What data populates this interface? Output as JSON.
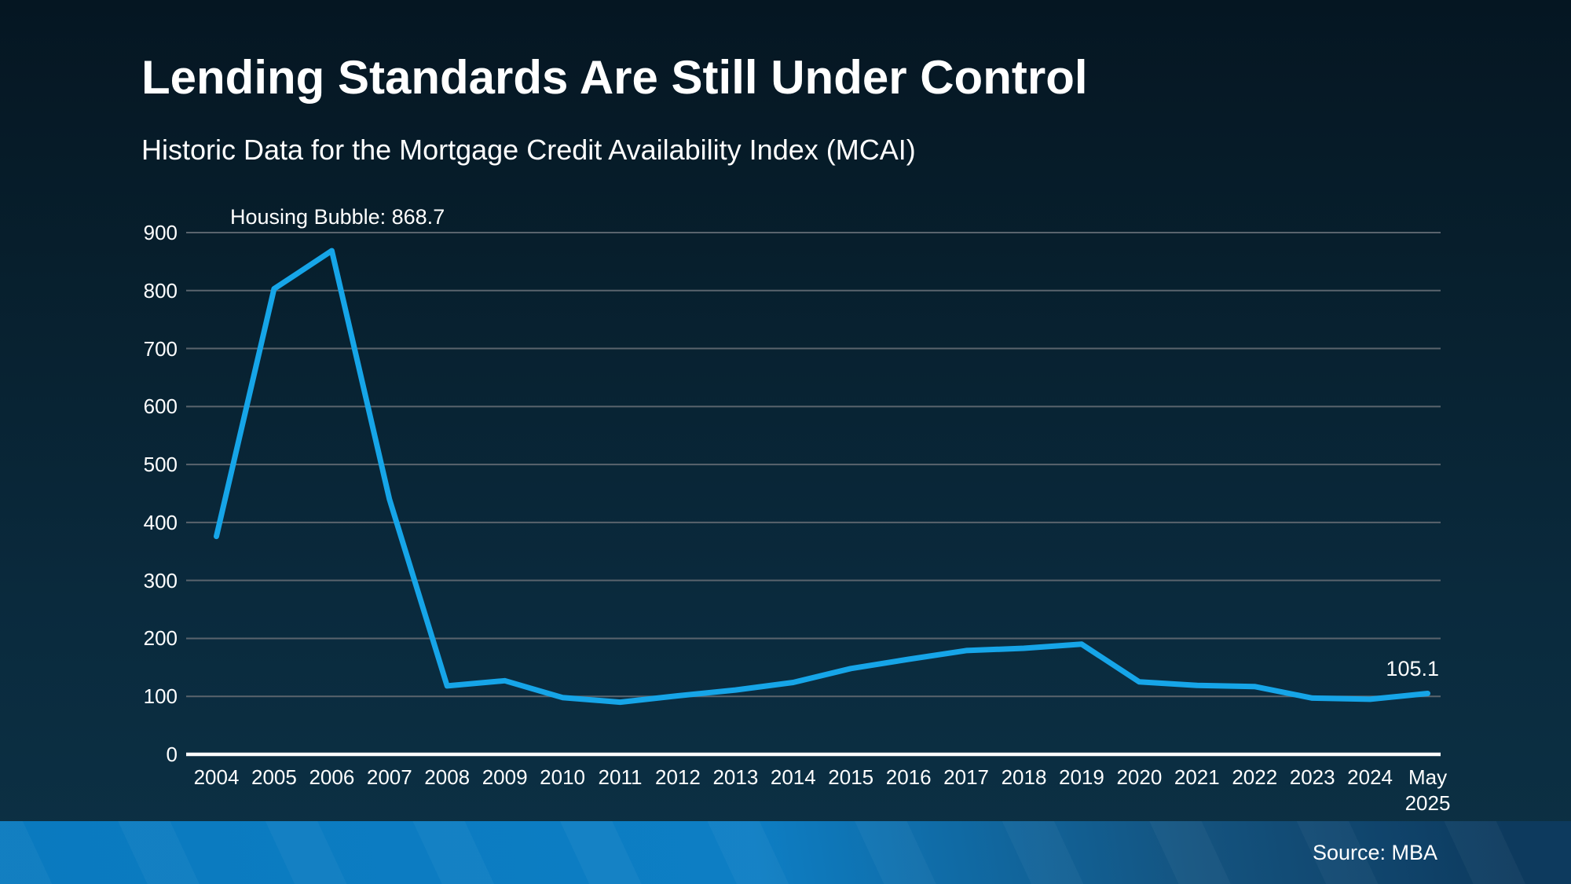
{
  "page": {
    "title": "Lending Standards Are Still Under Control",
    "subtitle": "Historic Data for the Mortgage Credit Availability Index (MCAI)",
    "source": "Source: MBA"
  },
  "chart_data": {
    "type": "line",
    "title": "Lending Standards Are Still Under Control",
    "subtitle": "Historic Data for the Mortgage Credit Availability Index (MCAI)",
    "categories": [
      "2004",
      "2005",
      "2006",
      "2007",
      "2008",
      "2009",
      "2010",
      "2011",
      "2012",
      "2013",
      "2014",
      "2015",
      "2016",
      "2017",
      "2018",
      "2019",
      "2020",
      "2021",
      "2022",
      "2023",
      "2024",
      "May 2025"
    ],
    "tick_labels": [
      "2004",
      "2005",
      "2006",
      "2007",
      "2008",
      "2009",
      "2010",
      "2011",
      "2012",
      "2013",
      "2014",
      "2015",
      "2016",
      "2017",
      "2018",
      "2019",
      "2020",
      "2021",
      "2022",
      "2023",
      "2024",
      "May\n2025"
    ],
    "series": [
      {
        "name": "Mortgage Credit Availability Index",
        "values": [
          376,
          803,
          868.7,
          440,
          118,
          127,
          98,
          90,
          101,
          111,
          124,
          148,
          164,
          179,
          183,
          190,
          125,
          119,
          117,
          97,
          95,
          105.1
        ]
      }
    ],
    "annotations": [
      {
        "text": "Housing Bubble: 868.7",
        "category": "2006",
        "value": 868.7
      },
      {
        "text": "105.1",
        "category": "May 2025",
        "value": 105.1
      }
    ],
    "xlabel": "",
    "ylabel": "",
    "ylim": [
      0,
      900
    ],
    "yticks": [
      0,
      100,
      200,
      300,
      400,
      500,
      600,
      700,
      800,
      900
    ],
    "grid": true,
    "legend": "none",
    "colors": {
      "line": "#16A5E8",
      "gridline": "#5a646d",
      "axis": "#ffffff",
      "text": "#ffffff",
      "background_top": "#051622",
      "background_bottom": "#0c3145",
      "footer_left": "#0b7cc2",
      "footer_right": "#0d3a5e"
    }
  }
}
